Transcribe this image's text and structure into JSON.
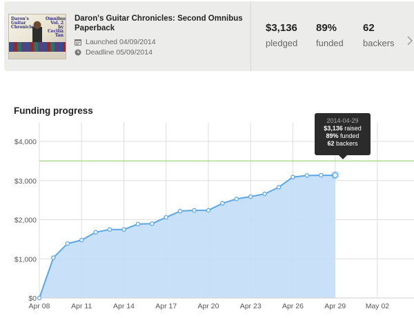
{
  "project": {
    "title": "Daron's Guitar Chronicles: Second Omnibus Paperback",
    "cover_text_left": "Daron's Guitar Chronicles",
    "cover_text_right": "Omnibus Vol. 2 by Cecilia Tan",
    "launched": "Launched 04/09/2014",
    "deadline": "Deadline 05/09/2014"
  },
  "stats": [
    {
      "value": "$3,136",
      "label": "pledged"
    },
    {
      "value": "89%",
      "label": "funded"
    },
    {
      "value": "62",
      "label": "backers"
    }
  ],
  "chart_title": "Funding progress",
  "tooltip": {
    "date": "2014-04-29",
    "raised_value": "$3,136",
    "raised_label": "raised",
    "funded_value": "89%",
    "funded_label": "funded",
    "backers_value": "62",
    "backers_label": "backers"
  },
  "colors": {
    "line": "#5aa6ea",
    "fill": "#c2def8",
    "goal_line": "#9fd37a",
    "grid": "#dddddd"
  },
  "chart_data": {
    "type": "area",
    "title": "Funding progress",
    "xlabel": "",
    "ylabel": "",
    "x_ticks": [
      "Apr 08",
      "Apr 11",
      "Apr 14",
      "Apr 17",
      "Apr 20",
      "Apr 23",
      "Apr 26",
      "Apr 29",
      "May 02"
    ],
    "y_ticks": [
      "$0",
      "$1,000",
      "$2,000",
      "$3,000",
      "$4,000"
    ],
    "ylim": [
      0,
      4300
    ],
    "xlim": [
      0,
      26.6
    ],
    "goal": 3500,
    "series": [
      {
        "x": [
          0,
          1,
          2,
          3,
          4,
          5,
          6,
          7,
          8,
          9,
          10,
          11,
          12,
          13,
          14,
          15,
          16,
          17,
          18,
          19,
          20,
          21
        ],
        "values": [
          0,
          1030,
          1390,
          1480,
          1680,
          1750,
          1750,
          1890,
          1900,
          2060,
          2220,
          2240,
          2240,
          2420,
          2530,
          2590,
          2660,
          2830,
          3090,
          3130,
          3136,
          3136
        ]
      }
    ],
    "grid": true
  }
}
